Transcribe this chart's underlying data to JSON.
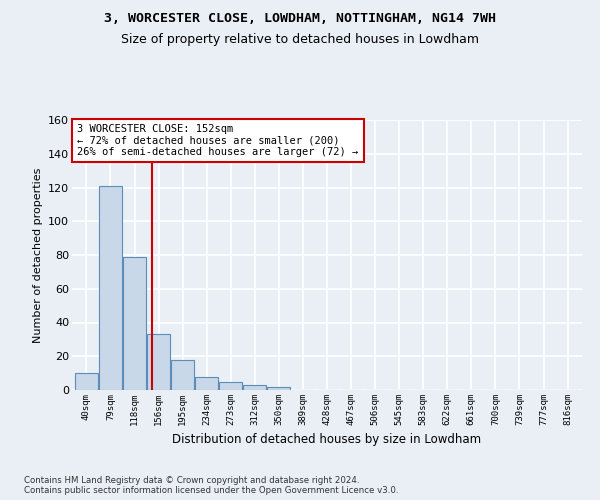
{
  "title": "3, WORCESTER CLOSE, LOWDHAM, NOTTINGHAM, NG14 7WH",
  "subtitle": "Size of property relative to detached houses in Lowdham",
  "xlabel": "Distribution of detached houses by size in Lowdham",
  "ylabel": "Number of detached properties",
  "bar_values": [
    10,
    121,
    79,
    33,
    18,
    8,
    5,
    3,
    2,
    0,
    0,
    0,
    0,
    0,
    0,
    0,
    0,
    0,
    0,
    0,
    0
  ],
  "bin_labels": [
    "40sqm",
    "79sqm",
    "118sqm",
    "156sqm",
    "195sqm",
    "234sqm",
    "273sqm",
    "312sqm",
    "350sqm",
    "389sqm",
    "428sqm",
    "467sqm",
    "506sqm",
    "545sqm",
    "583sqm",
    "622sqm",
    "661sqm",
    "700sqm",
    "739sqm",
    "777sqm",
    "816sqm"
  ],
  "bar_color": "#c8d8e8",
  "bar_edge_color": "#5b8db8",
  "annotation_box_text": "3 WORCESTER CLOSE: 152sqm\n← 72% of detached houses are smaller (200)\n26% of semi-detached houses are larger (72) →",
  "annotation_box_color": "#cc0000",
  "vline_color": "#cc0000",
  "vline_x": 2.72,
  "ylim": [
    0,
    160
  ],
  "yticks": [
    0,
    20,
    40,
    60,
    80,
    100,
    120,
    140,
    160
  ],
  "footer_text": "Contains HM Land Registry data © Crown copyright and database right 2024.\nContains public sector information licensed under the Open Government Licence v3.0.",
  "bg_color": "#eaeff5",
  "plot_bg_color": "#eaeff5",
  "grid_color": "#ffffff",
  "property_size": 152
}
